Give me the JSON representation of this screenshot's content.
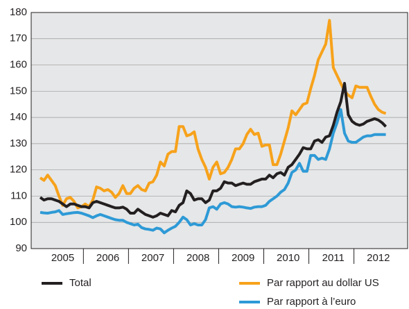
{
  "chart_data": {
    "type": "line",
    "categories": [
      null,
      null,
      null,
      null,
      null,
      null,
      "2005",
      null,
      null,
      null,
      null,
      null,
      null,
      null,
      null,
      null,
      null,
      null,
      "2006",
      null,
      null,
      null,
      null,
      null,
      null,
      null,
      null,
      null,
      null,
      null,
      "2007",
      null,
      null,
      null,
      null,
      null,
      null,
      null,
      null,
      null,
      null,
      null,
      "2008",
      null,
      null,
      null,
      null,
      null,
      null,
      null,
      null,
      null,
      null,
      null,
      "2009",
      null,
      null,
      null,
      null,
      null,
      null,
      null,
      null,
      null,
      null,
      null,
      "2010",
      null,
      null,
      null,
      null,
      null,
      null,
      null,
      null,
      null,
      null,
      null,
      "2011",
      null,
      null,
      null,
      null,
      null,
      null,
      null,
      null,
      null,
      null,
      null,
      "2012",
      null,
      null
    ],
    "series": [
      {
        "name": "Total",
        "color": "#231f20",
        "values": [
          109.5,
          108.5,
          109,
          109,
          108.5,
          108,
          107,
          106,
          107,
          107,
          106.5,
          106,
          106,
          105.5,
          107.5,
          108,
          107.5,
          107,
          106.5,
          106,
          105.5,
          105.5,
          105.8,
          105,
          103.5,
          103.5,
          105,
          104,
          103,
          102.5,
          102,
          102.5,
          103.5,
          103,
          102.5,
          104.5,
          104,
          106.5,
          107.5,
          112,
          111,
          108.5,
          109,
          109,
          107.5,
          108.5,
          112,
          112,
          113,
          115.5,
          115,
          115,
          114,
          114.5,
          115,
          114.5,
          114.5,
          115.5,
          116,
          116.5,
          116.5,
          118,
          117,
          118.5,
          119,
          118,
          121,
          122,
          124,
          126,
          128.5,
          128,
          128,
          131,
          131.5,
          130.5,
          132.5,
          133,
          137,
          142,
          146,
          153,
          141,
          138.5,
          137.5,
          137,
          137.5,
          138.5,
          139,
          139.5,
          139,
          138,
          136.5
        ]
      },
      {
        "name": "Par rapport au dollar US",
        "color": "#f7a21b",
        "values": [
          117,
          116,
          118,
          116,
          114,
          110,
          106.5,
          109,
          109.5,
          108,
          105.5,
          106,
          107,
          106,
          108.5,
          113.5,
          113,
          112,
          112.5,
          111.5,
          109.5,
          111,
          114,
          111,
          111,
          113,
          114,
          112.5,
          112,
          115,
          115.5,
          118,
          123,
          121.5,
          126,
          127,
          127,
          136.5,
          136.5,
          133,
          133.5,
          134.5,
          128,
          124,
          121,
          116.5,
          121,
          123,
          118.5,
          119,
          121,
          124,
          128,
          128,
          130,
          133.5,
          135.5,
          133.5,
          134,
          129,
          129.5,
          129.5,
          122,
          122,
          126,
          131,
          136,
          142.5,
          141,
          143,
          145,
          145.5,
          151,
          156,
          162,
          165,
          168,
          177,
          159,
          156,
          153,
          150,
          148.5,
          147.5,
          152,
          151.5,
          151.5,
          151.5,
          148,
          145,
          143,
          142,
          141.5
        ]
      },
      {
        "name": "Par rapport à l’euro",
        "color": "#2e9ad6",
        "values": [
          103.8,
          103.6,
          103.5,
          103.8,
          104,
          104.5,
          103,
          103.3,
          103.5,
          103.7,
          103.8,
          103.5,
          103,
          102.5,
          101.8,
          102.5,
          103,
          102.5,
          102,
          101.5,
          101,
          100.8,
          100.8,
          100,
          99.5,
          99,
          99.3,
          98,
          97.5,
          97.3,
          97,
          97.8,
          97.5,
          96,
          97,
          97.8,
          98.5,
          100,
          102,
          101,
          99,
          99.5,
          99,
          99,
          101,
          105.5,
          106,
          105,
          107,
          107.5,
          107,
          106,
          105.8,
          106,
          105.8,
          105.5,
          105.3,
          105.8,
          106,
          106,
          106.5,
          108,
          109,
          110,
          111.5,
          112.5,
          115,
          119,
          120,
          122.5,
          119.5,
          119.5,
          125.5,
          125.5,
          124,
          124.5,
          124,
          128,
          134,
          138,
          143,
          134,
          131,
          130.5,
          130.5,
          131.5,
          132.5,
          133,
          133,
          133.5,
          133.5,
          133.5,
          133.5
        ]
      }
    ],
    "ylim": [
      90,
      180
    ],
    "yticks": [
      90,
      100,
      110,
      120,
      130,
      140,
      150,
      160,
      170,
      180
    ],
    "grid": true
  }
}
